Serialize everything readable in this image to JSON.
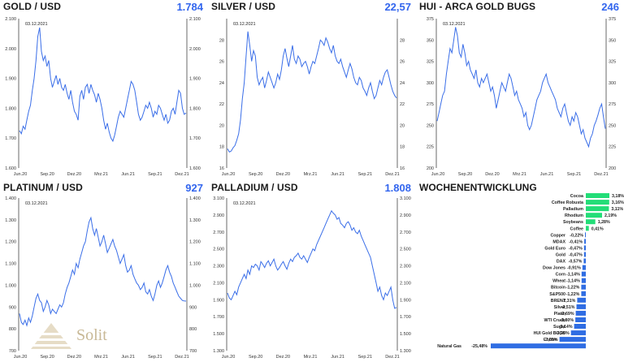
{
  "brand": {
    "name": "Solit"
  },
  "colors": {
    "line": "#3a6ee8",
    "value": "#3366ee",
    "up": "#22dd77",
    "down": "#2f6de3"
  },
  "chart_data": [
    {
      "type": "line",
      "title": "GOLD / USD",
      "value": "1.784",
      "date": "03.12.2021",
      "ylim": [
        1600,
        2100
      ],
      "yticks": [
        "1.600",
        "1.700",
        "1.800",
        "1.900",
        "2.000",
        "2.100"
      ],
      "xticks": [
        "Jun.20",
        "Sep.20",
        "Dez.20",
        "Mrz.21",
        "Jun.21",
        "Sep.21",
        "Dez.21"
      ],
      "series": [
        {
          "name": "Gold",
          "values": [
            1725,
            1715,
            1740,
            1730,
            1760,
            1790,
            1810,
            1860,
            1900,
            1960,
            2040,
            2070,
            1990,
            1960,
            1975,
            1940,
            1960,
            1900,
            1870,
            1890,
            1910,
            1880,
            1900,
            1870,
            1860,
            1880,
            1850,
            1830,
            1860,
            1820,
            1790,
            1780,
            1760,
            1840,
            1860,
            1830,
            1870,
            1880,
            1850,
            1880,
            1860,
            1845,
            1820,
            1850,
            1830,
            1800,
            1760,
            1730,
            1750,
            1720,
            1700,
            1690,
            1710,
            1740,
            1770,
            1790,
            1780,
            1770,
            1800,
            1830,
            1860,
            1890,
            1880,
            1860,
            1820,
            1780,
            1760,
            1770,
            1790,
            1810,
            1800,
            1820,
            1800,
            1770,
            1790,
            1780,
            1810,
            1800,
            1780,
            1760,
            1780,
            1750,
            1760,
            1790,
            1800,
            1780,
            1820,
            1860,
            1850,
            1800,
            1780,
            1784
          ]
        }
      ]
    },
    {
      "type": "line",
      "title": "SILVER / USD",
      "value": "22,57",
      "date": "03.12.2021",
      "ylim": [
        16,
        30
      ],
      "yticks": [
        "16",
        "18",
        "20",
        "22",
        "24",
        "26",
        "28"
      ],
      "xticks": [
        "Jun.20",
        "Sep.20",
        "Dez.20",
        "Mrz.21",
        "Jun.21",
        "Sep.21",
        "Dez.21"
      ],
      "series": [
        {
          "name": "Silver",
          "values": [
            17.8,
            17.5,
            17.6,
            17.9,
            18.1,
            18.6,
            19.2,
            20.5,
            22.5,
            24,
            26.5,
            28.8,
            27.5,
            26,
            27,
            26.5,
            24.5,
            23.8,
            24.2,
            24.5,
            23.5,
            24.2,
            25,
            24.5,
            24,
            23.5,
            24,
            24.8,
            24.3,
            25.2,
            26.5,
            27.2,
            26.3,
            25.5,
            26.5,
            27.5,
            26.2,
            25.8,
            26.5,
            26.2,
            25.5,
            25.8,
            26,
            25.5,
            24.8,
            25.5,
            26,
            25.8,
            26.5,
            27.2,
            28,
            27.8,
            27.5,
            28.2,
            27.8,
            27.2,
            26.8,
            27.5,
            26.5,
            26,
            25.8,
            26.2,
            25.5,
            25,
            24.5,
            25.2,
            25.8,
            25.3,
            24.5,
            24,
            23.8,
            24.5,
            24.2,
            23.5,
            23.2,
            22.8,
            23.5,
            24,
            23.2,
            22.5,
            22.8,
            23.5,
            24.2,
            23.8,
            24.5,
            25,
            25.2,
            24.5,
            23.8,
            23.2,
            22.8,
            22.57
          ]
        }
      ]
    },
    {
      "type": "line",
      "title": "HUI - ARCA GOLD BUGS",
      "value": "246",
      "date": "03.12.2021",
      "ylim": [
        200,
        375
      ],
      "yticks": [
        "200",
        "225",
        "250",
        "275",
        "300",
        "325",
        "350",
        "375"
      ],
      "xticks": [
        "Jun.20",
        "Sep.20",
        "Dez.20",
        "Mrz.21",
        "Jun.21",
        "Sep.21",
        "Dez.21"
      ],
      "series": [
        {
          "name": "HUI",
          "values": [
            255,
            265,
            275,
            285,
            290,
            310,
            325,
            340,
            335,
            350,
            365,
            355,
            335,
            330,
            345,
            335,
            320,
            325,
            315,
            310,
            305,
            315,
            300,
            295,
            305,
            300,
            305,
            310,
            300,
            290,
            295,
            285,
            270,
            280,
            290,
            300,
            295,
            290,
            300,
            310,
            305,
            295,
            285,
            290,
            280,
            275,
            270,
            260,
            265,
            250,
            245,
            250,
            260,
            270,
            280,
            285,
            290,
            300,
            305,
            310,
            300,
            295,
            290,
            285,
            280,
            270,
            265,
            260,
            270,
            275,
            265,
            255,
            250,
            260,
            255,
            265,
            260,
            250,
            240,
            245,
            235,
            230,
            225,
            235,
            240,
            250,
            255,
            262,
            270,
            275,
            260,
            246
          ]
        }
      ]
    },
    {
      "type": "line",
      "title": "PLATINUM / USD",
      "value": "927",
      "date": "03.12.2021",
      "ylim": [
        700,
        1400
      ],
      "yticks": [
        "700",
        "800",
        "900",
        "1.000",
        "1.100",
        "1.200",
        "1.300",
        "1.400"
      ],
      "xticks": [
        "Jun.20",
        "Sep.20",
        "Dez.20",
        "Mrz.21",
        "Jun.21",
        "Sep.21",
        "Dez.21"
      ],
      "series": [
        {
          "name": "Platinum",
          "values": [
            870,
            830,
            820,
            840,
            815,
            850,
            830,
            860,
            900,
            940,
            960,
            930,
            920,
            880,
            900,
            930,
            910,
            870,
            890,
            880,
            870,
            890,
            910,
            900,
            920,
            960,
            990,
            1010,
            1040,
            1070,
            1050,
            1100,
            1080,
            1120,
            1150,
            1180,
            1200,
            1250,
            1290,
            1310,
            1260,
            1230,
            1260,
            1220,
            1180,
            1200,
            1230,
            1190,
            1150,
            1170,
            1190,
            1210,
            1180,
            1160,
            1130,
            1100,
            1120,
            1140,
            1090,
            1060,
            1070,
            1090,
            1050,
            1030,
            1010,
            1000,
            980,
            990,
            1010,
            970,
            960,
            980,
            950,
            930,
            960,
            1000,
            1020,
            990,
            1010,
            1040,
            1070,
            1090,
            1060,
            1040,
            1010,
            990,
            970,
            950,
            940,
            930,
            928,
            927
          ]
        }
      ]
    },
    {
      "type": "line",
      "title": "PALLADIUM / USD",
      "value": "1.808",
      "date": "03.12.2021",
      "ylim": [
        1300,
        3100
      ],
      "yticks": [
        "1.300",
        "1.500",
        "1.700",
        "1.900",
        "2.100",
        "2.300",
        "2.500",
        "2.700",
        "2.900",
        "3.100"
      ],
      "xticks": [
        "Jun.20",
        "Sep.20",
        "Dez.20",
        "Mrz.21",
        "Jun.21",
        "Sep.21",
        "Dez.21"
      ],
      "series": [
        {
          "name": "Palladium",
          "values": [
            1980,
            1920,
            1900,
            1950,
            2000,
            1960,
            2050,
            2100,
            2150,
            2200,
            2150,
            2250,
            2200,
            2300,
            2280,
            2320,
            2300,
            2250,
            2350,
            2320,
            2280,
            2330,
            2360,
            2300,
            2340,
            2380,
            2300,
            2250,
            2280,
            2320,
            2350,
            2300,
            2260,
            2330,
            2380,
            2350,
            2400,
            2420,
            2450,
            2400,
            2380,
            2420,
            2380,
            2340,
            2400,
            2450,
            2500,
            2480,
            2550,
            2600,
            2650,
            2700,
            2750,
            2800,
            2850,
            2900,
            2950,
            2920,
            2900,
            2850,
            2870,
            2800,
            2780,
            2750,
            2800,
            2820,
            2780,
            2720,
            2750,
            2700,
            2680,
            2720,
            2650,
            2600,
            2550,
            2500,
            2450,
            2400,
            2300,
            2200,
            2100,
            2000,
            2050,
            1950,
            1900,
            1980,
            1950,
            2000,
            2050,
            1900,
            1800,
            1808
          ]
        }
      ]
    },
    {
      "type": "bar",
      "title": "WOCHENENTWICKLUNG",
      "categories": [
        "Cocoa",
        "Coffee Robusta",
        "Palladium",
        "Rhodium",
        "Soybeans",
        "Coffee",
        "Copper",
        "MDAX",
        "Gold Euro",
        "Gold",
        "DAX",
        "Dow Jones",
        "Corn",
        "Wheat",
        "Bitcoin",
        "S&P500",
        "BRENT",
        "Silver",
        "Platin",
        "WTI Crude",
        "Sugar",
        "HUI Gold BUGS",
        "Cotton",
        "Natural Gas"
      ],
      "values": [
        3.18,
        3.16,
        3.11,
        2.19,
        1.28,
        0.41,
        -0.22,
        -0.41,
        -0.47,
        -0.47,
        -0.57,
        -0.91,
        -1.14,
        -1.14,
        -1.22,
        -1.22,
        -2.31,
        -2.51,
        -2.69,
        -2.8,
        -3.14,
        -3.98,
        -7.05,
        -25.48
      ],
      "labels": [
        "3,18%",
        "3,16%",
        "3,11%",
        "2,19%",
        "1,28%",
        "0,41%",
        "-0,22%",
        "-0,41%",
        "-0,47%",
        "-0,47%",
        "-0,57%",
        "-0,91%",
        "-1,14%",
        "-1,14%",
        "-1,22%",
        "-1,22%",
        "-2,31%",
        "-2,51%",
        "-2,69%",
        "-2,80%",
        "-3,14%",
        "-3,98%",
        "-7,05%",
        "-25,48%"
      ]
    }
  ]
}
